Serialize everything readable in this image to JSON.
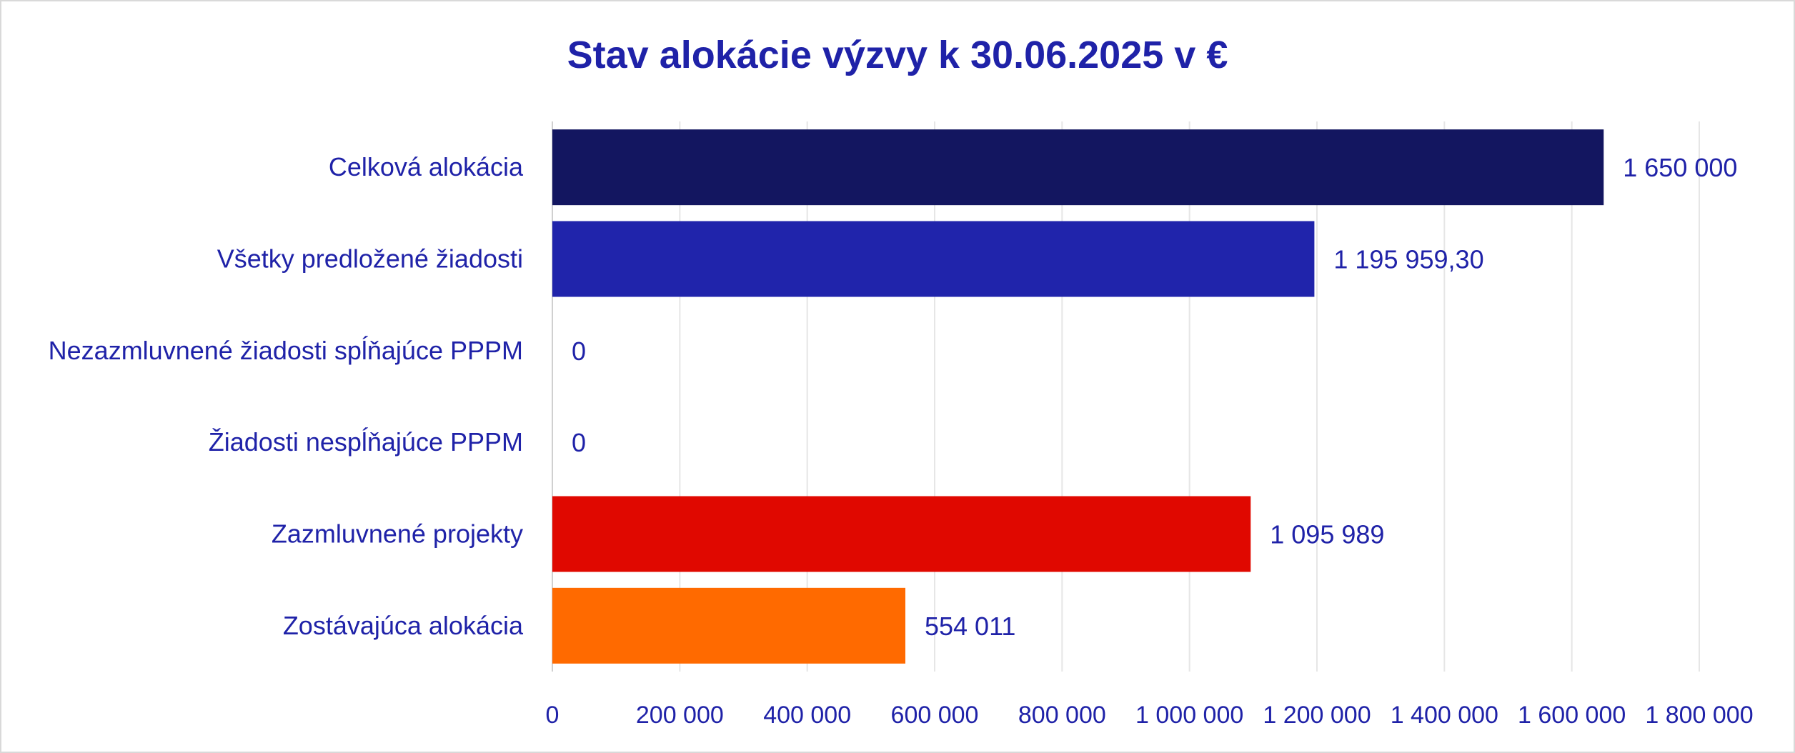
{
  "chart_data": {
    "type": "bar",
    "orientation": "horizontal",
    "title": "Stav alokácie výzvy k 30.06.2025 v €",
    "categories": [
      "Celková alokácia",
      "Všetky predložené žiadosti",
      "Nezazmluvnené žiadosti spĺňajúce PPPM",
      "Žiadosti nespĺňajúce PPPM",
      "Zazmluvnené projekty",
      "Zostávajúca alokácia"
    ],
    "values": [
      1650000,
      1195959.3,
      0,
      0,
      1095989,
      554011
    ],
    "value_labels": [
      "1 650 000",
      "1 195 959,30",
      "0",
      "0",
      "1 095 989",
      "554 011"
    ],
    "colors": [
      "#131660",
      "#2024ab",
      "#2024ab",
      "#2024ab",
      "#e00800",
      "#ff6a00"
    ],
    "xlim": [
      0,
      1800000
    ],
    "xticks": [
      0,
      200000,
      400000,
      600000,
      800000,
      1000000,
      1200000,
      1400000,
      1600000,
      1800000
    ],
    "xtick_labels": [
      "0",
      "200 000",
      "400 000",
      "600 000",
      "800 000",
      "1 000 000",
      "1 200 000",
      "1 400 000",
      "1 600 000",
      "1 800 000"
    ],
    "grid": "vertical",
    "legend": "none",
    "xlabel": "",
    "ylabel": ""
  }
}
